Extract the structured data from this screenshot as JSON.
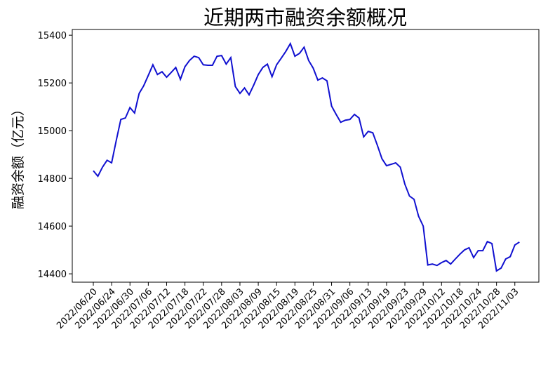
{
  "chart_data": {
    "type": "line",
    "title": "近期两市融资余额概况",
    "ylabel": "融资余额（亿元）",
    "categories": [
      "2022/06/20",
      null,
      null,
      null,
      "2022/06/24",
      null,
      null,
      null,
      "2022/06/30",
      null,
      null,
      null,
      "2022/07/06",
      null,
      null,
      null,
      "2022/07/12",
      null,
      null,
      null,
      "2022/07/18",
      null,
      null,
      null,
      "2022/07/22",
      null,
      null,
      null,
      "2022/07/28",
      null,
      null,
      null,
      "2022/08/03",
      null,
      null,
      null,
      "2022/08/09",
      null,
      null,
      null,
      "2022/08/15",
      null,
      null,
      null,
      "2022/08/19",
      null,
      null,
      null,
      "2022/08/25",
      null,
      null,
      null,
      "2022/08/31",
      null,
      null,
      null,
      "2022/09/06",
      null,
      null,
      null,
      "2022/09/13",
      null,
      null,
      null,
      "2022/09/19",
      null,
      null,
      null,
      "2022/09/23",
      null,
      null,
      null,
      "2022/09/29",
      null,
      null,
      null,
      "2022/10/12",
      null,
      null,
      null,
      "2022/10/18",
      null,
      null,
      null,
      "2022/10/24",
      null,
      null,
      null,
      "2022/10/28",
      null,
      null,
      null,
      "2022/11/03",
      null
    ],
    "series": [
      {
        "name": "融资余额",
        "color": "#1010d0",
        "values": [
          14832,
          14809,
          14847,
          14876,
          14865,
          14959,
          15047,
          15053,
          15097,
          15074,
          15156,
          15188,
          15232,
          15276,
          15235,
          15247,
          15224,
          15244,
          15265,
          15215,
          15268,
          15294,
          15312,
          15306,
          15276,
          15274,
          15274,
          15312,
          15315,
          15279,
          15306,
          15185,
          15156,
          15179,
          15150,
          15191,
          15235,
          15265,
          15279,
          15226,
          15276,
          15303,
          15332,
          15365,
          15312,
          15324,
          15350,
          15294,
          15262,
          15212,
          15221,
          15209,
          15103,
          15068,
          15035,
          15044,
          15047,
          15068,
          15053,
          14974,
          14997,
          14991,
          14938,
          14882,
          14853,
          14859,
          14865,
          14847,
          14776,
          14726,
          14712,
          14641,
          14600,
          14437,
          14441,
          14435,
          14447,
          14456,
          14441,
          14462,
          14482,
          14500,
          14509,
          14468,
          14497,
          14497,
          14535,
          14527,
          14412,
          14424,
          14462,
          14472,
          14521,
          14533
        ]
      }
    ],
    "ylim": [
      14365,
      15424
    ],
    "yticks": [
      14400,
      14600,
      14800,
      15000,
      15200,
      15400
    ]
  }
}
